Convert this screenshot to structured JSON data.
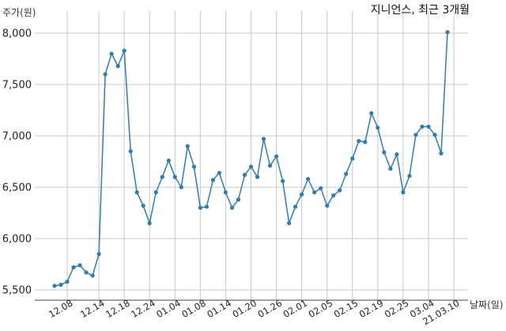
{
  "chart_data": {
    "type": "line",
    "title": "지니언스, 최근 3개월",
    "ylabel": "주가(원)",
    "xlabel": "날짜(일)",
    "ylim": [
      5500,
      8250
    ],
    "yticks": [
      5500,
      6000,
      6500,
      7000,
      7500,
      8000
    ],
    "ytick_labels": [
      "5,500",
      "6,000",
      "6,500",
      "7,000",
      "7,500",
      "8,000"
    ],
    "xtick_labels": [
      "12.08",
      "12.14",
      "12.18",
      "12.24",
      "01.04",
      "01.08",
      "01.14",
      "01.20",
      "01.26",
      "02.01",
      "02.05",
      "02.15",
      "02.19",
      "02.25",
      "03.04",
      "21.03.10"
    ],
    "xtick_indices": [
      2,
      7,
      11,
      15,
      19,
      23,
      27,
      31,
      35,
      39,
      43,
      47,
      51,
      55,
      59,
      63
    ],
    "grid": true,
    "color": "#2e7db5",
    "series": [
      {
        "values": [
          5540,
          5550,
          5580,
          5720,
          5740,
          5670,
          5640,
          5850,
          7600,
          7800,
          7680,
          7830,
          6850,
          6450,
          6320,
          6150,
          6450,
          6600,
          6760,
          6600,
          6500,
          6900,
          6700,
          6300,
          6310,
          6570,
          6640,
          6450,
          6300,
          6380,
          6620,
          6700,
          6600,
          6970,
          6710,
          6800,
          6560,
          6150,
          6310,
          6430,
          6580,
          6450,
          6490,
          6320,
          6420,
          6470,
          6630,
          6780,
          6950,
          6940,
          7220,
          7080,
          6840,
          6680,
          6820,
          6450,
          6610,
          7010,
          7090,
          7090,
          7010,
          6830,
          8010
        ]
      }
    ]
  }
}
